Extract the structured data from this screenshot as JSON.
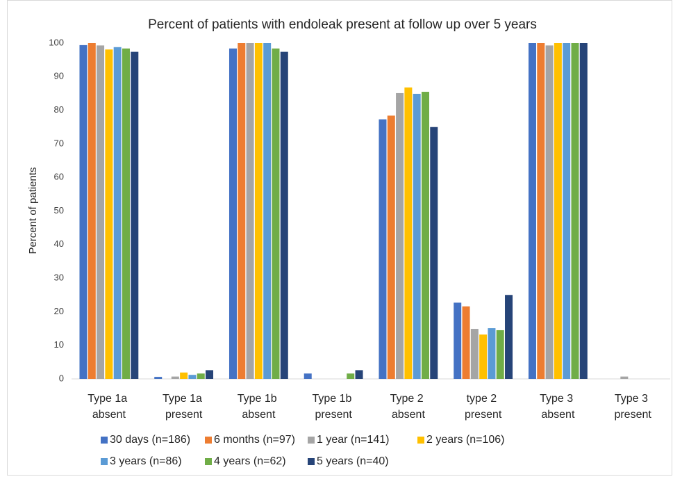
{
  "chart_data": {
    "type": "bar",
    "title": "Percent of patients with endoleak present at follow up over 5 years",
    "y_label": "Percent of patients",
    "categories": [
      "Type 1a absent",
      "Type 1a present",
      "Type 1b absent",
      "Type 1b present",
      "Type 2 absent",
      "type 2 present",
      "Type 3 absent",
      "Type 3 present"
    ],
    "series": [
      {
        "name": "30 days (n=186)",
        "color": "#4472c4",
        "values": [
          99.4,
          0.6,
          98.4,
          1.6,
          77.3,
          22.7,
          100,
          0
        ]
      },
      {
        "name": "6 months (n=97)",
        "color": "#ed7d31",
        "values": [
          100,
          0,
          100,
          0,
          78.4,
          21.6,
          100,
          0
        ]
      },
      {
        "name": "1 year (n=141)",
        "color": "#a5a5a5",
        "values": [
          99.3,
          0.7,
          100,
          0,
          85.1,
          14.9,
          99.3,
          0.7
        ]
      },
      {
        "name": "2 years (n=106)",
        "color": "#ffc000",
        "values": [
          98.1,
          1.9,
          100,
          0,
          86.8,
          13.2,
          100,
          0
        ]
      },
      {
        "name": "3 years (n=86)",
        "color": "#5b9bd5",
        "values": [
          98.8,
          1.2,
          100,
          0,
          84.9,
          15.1,
          100,
          0
        ]
      },
      {
        "name": "4 years (n=62)",
        "color": "#70ad47",
        "values": [
          98.4,
          1.6,
          98.4,
          1.6,
          85.5,
          14.5,
          100,
          0
        ]
      },
      {
        "name": "5 years (n=40)",
        "color": "#264478",
        "values": [
          97.4,
          2.6,
          97.4,
          2.6,
          75,
          25,
          100,
          0
        ]
      }
    ],
    "ylim": [
      0,
      100
    ],
    "yticks": [
      0,
      10,
      20,
      30,
      40,
      50,
      60,
      70,
      80,
      90,
      100
    ],
    "grid": false,
    "legend": "bottom"
  }
}
